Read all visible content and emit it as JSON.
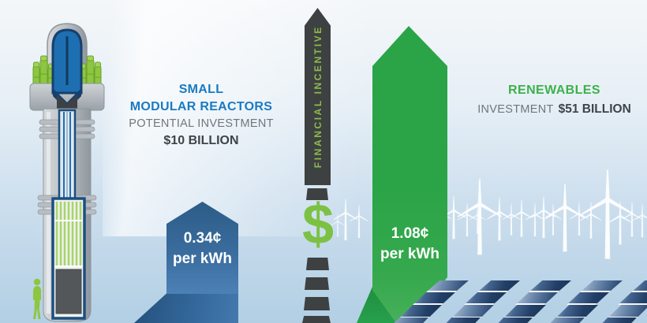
{
  "smr": {
    "title_line1": "SMALL",
    "title_line2": "MODULAR REACTORS",
    "subtitle": "POTENTIAL INVESTMENT",
    "amount": "$10 BILLION",
    "rate_value": "0.34¢",
    "rate_unit": "per kWh"
  },
  "incentive": {
    "label": "FINANCIAL INCENTIVE",
    "dollar": "$"
  },
  "renewables": {
    "title": "RENEWABLES",
    "subtitle": "INVESTMENT",
    "amount": "$51 BILLION",
    "rate_value": "1.08¢",
    "rate_unit": "per kWh"
  },
  "colors": {
    "smr_heading_blue": "#1a7ac2",
    "renewables_green": "#3cb14a",
    "green_arrow": "#2ba447",
    "blue_arrow_top": "#2c5c87",
    "blue_arrow_bottom": "#4c81b5",
    "incentive_bar": "#3e4141",
    "dollar_green": "#7cc143",
    "text_gray": "#6f767d",
    "text_dark": "#3e4449"
  },
  "chart_data": {
    "type": "bar",
    "title": "Financial Incentive",
    "categories": [
      "Small Modular Reactors",
      "Renewables"
    ],
    "series": [
      {
        "name": "Financial incentive (cents per kWh)",
        "values": [
          0.34,
          1.08
        ],
        "unit": "¢ per kWh"
      },
      {
        "name": "Investment (billions USD)",
        "values": [
          10,
          51
        ],
        "unit": "$ billion"
      }
    ],
    "annotations": [
      "Small Modular Reactors potential investment $10 billion, incentive 0.34¢ per kWh",
      "Renewables investment $51 billion, incentive 1.08¢ per kWh"
    ],
    "legend_position": "none",
    "grid": false
  }
}
